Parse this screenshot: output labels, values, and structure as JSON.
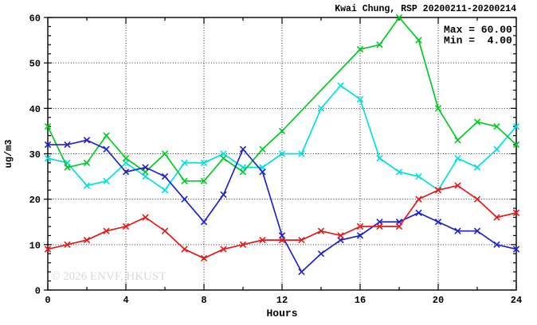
{
  "title": "Kwai Chung, RSP 20200211-20200214",
  "annotation": {
    "max_label": "Max = 60.00",
    "min_label": "Min =  4.00"
  },
  "watermark": "© 2026 ENVF, HKUST",
  "chart_data": {
    "type": "line",
    "title": "Kwai Chung, RSP 20200211-20200214",
    "xlabel": "Hours",
    "ylabel": "ug/m3",
    "xlim": [
      0,
      24
    ],
    "ylim": [
      0,
      60
    ],
    "x_tick_major": [
      0,
      4,
      8,
      12,
      16,
      20,
      24
    ],
    "x_tick_labels": [
      "0",
      "4",
      "8",
      "12",
      "16",
      "20",
      "24"
    ],
    "x_minor_step": 2,
    "y_tick_major": [
      0,
      10,
      20,
      30,
      40,
      50,
      60
    ],
    "y_tick_labels": [
      "0",
      "10",
      "20",
      "30",
      "40",
      "50",
      "60"
    ],
    "y_minor_step": 2,
    "grid": {
      "style": "dotted",
      "x_at": [
        4,
        8,
        12,
        16,
        20
      ],
      "y_at": [
        10,
        20,
        30,
        40,
        50
      ]
    },
    "legend": null,
    "marker": "x",
    "x": [
      0,
      1,
      2,
      3,
      4,
      5,
      6,
      7,
      8,
      9,
      10,
      11,
      12,
      13,
      14,
      15,
      16,
      17,
      18,
      19,
      20,
      21,
      22,
      23,
      24
    ],
    "series": [
      {
        "name": "cyan",
        "color": "#00e0e0",
        "values": [
          29,
          28,
          23,
          24,
          28,
          25,
          22,
          28,
          28,
          30,
          27,
          27,
          30,
          30,
          40,
          45,
          42,
          29,
          26,
          25,
          22,
          29,
          27,
          31,
          36
        ]
      },
      {
        "name": "green",
        "color": "#00cc22",
        "values": [
          36,
          27,
          28,
          34,
          29,
          26,
          30,
          24,
          24,
          29,
          26,
          31,
          35,
          null,
          null,
          null,
          53,
          54,
          60,
          55,
          40,
          33,
          37,
          36,
          32
        ]
      },
      {
        "name": "blue",
        "color": "#2222cc",
        "values": [
          32,
          32,
          33,
          31,
          26,
          27,
          25,
          20,
          15,
          21,
          31,
          26,
          12,
          4,
          8,
          11,
          12,
          15,
          15,
          17,
          15,
          13,
          13,
          10,
          9
        ]
      },
      {
        "name": "red",
        "color": "#e61919",
        "values": [
          9,
          10,
          11,
          13,
          14,
          16,
          13,
          9,
          7,
          9,
          10,
          11,
          11,
          11,
          13,
          12,
          14,
          14,
          14,
          20,
          22,
          23,
          20,
          16,
          17
        ]
      }
    ],
    "stats": {
      "max": 60.0,
      "min": 4.0
    }
  }
}
